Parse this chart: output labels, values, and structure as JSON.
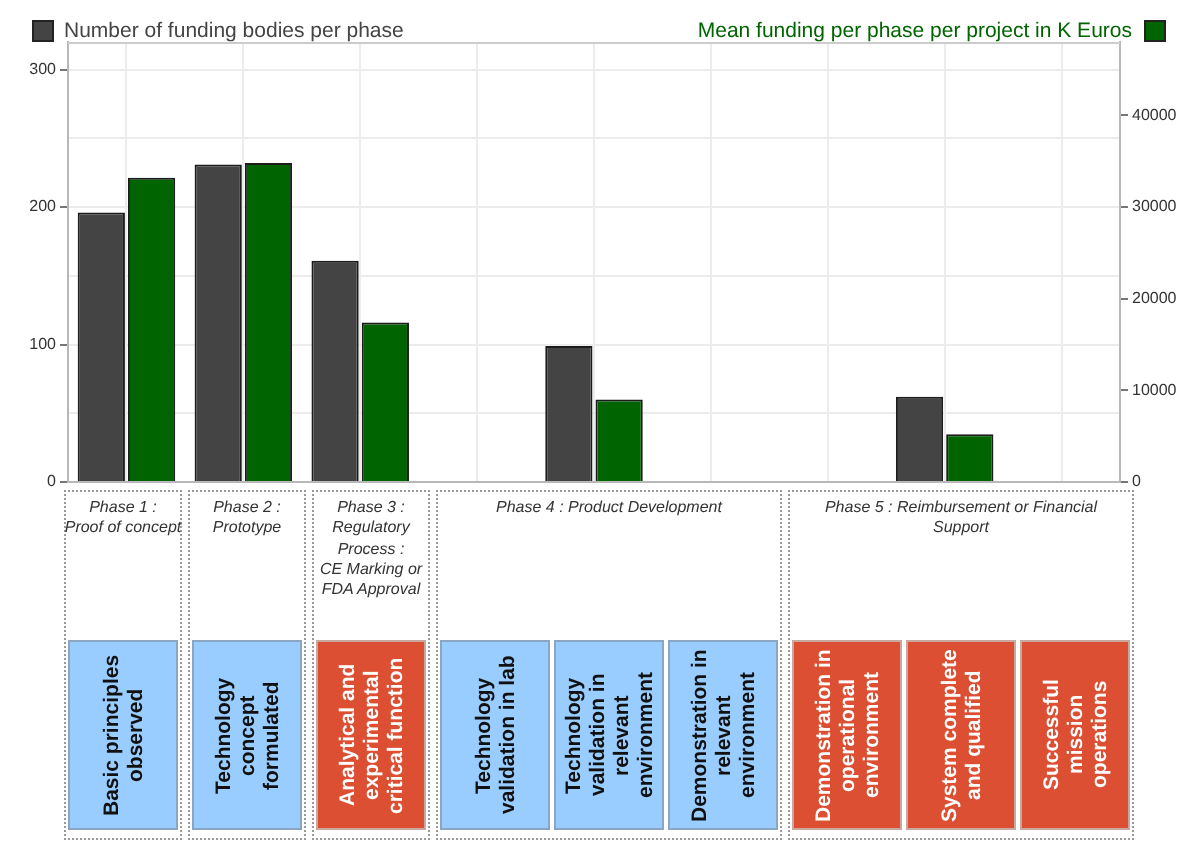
{
  "chart_data": {
    "type": "bar",
    "categories": [
      null,
      null,
      null,
      null,
      null,
      null,
      null,
      null,
      null
    ],
    "series": [
      {
        "name": "Number of funding bodies per phase",
        "color": "#444444",
        "values": [
          196,
          231,
          161,
          null,
          99,
          null,
          null,
          62,
          null
        ]
      },
      {
        "name": "Mean funding per phase per project in K Euros",
        "color": "#006400",
        "axis": "y2",
        "values": [
          33200,
          34800,
          17400,
          null,
          9000,
          null,
          null,
          5200,
          null
        ]
      }
    ],
    "ylim": [
      0,
      320
    ],
    "yticks": [
      0,
      {
        "value": 50,
        "label": null
      },
      100,
      {
        "value": 150,
        "label": null
      },
      200,
      {
        "value": 250,
        "label": null
      },
      300
    ],
    "y2lim": [
      0,
      48000
    ],
    "y2ticks": [
      0,
      10000,
      20000,
      30000,
      40000
    ],
    "grid": true,
    "legend": "top",
    "annotations": [
      "Phase 1 :\nProof of concept",
      "Phase 2 :\nPrototype",
      "Phase 3 :\nRegulatory\nProcess :\nCE Marking or\nFDA Approval",
      "Phase 4 : Product Development",
      "Phase 5 : Reimbursement or Financial\nSupport",
      "Basic principles observed",
      "Technology concept formulated",
      "Analytical and experimental critical function",
      "Technology validation in lab",
      "Technology validation in relevant environment",
      "Demonstration in relevant environment",
      "Demonstration in operational environment",
      "System complete and qualified",
      "Successful mission operations"
    ]
  }
}
